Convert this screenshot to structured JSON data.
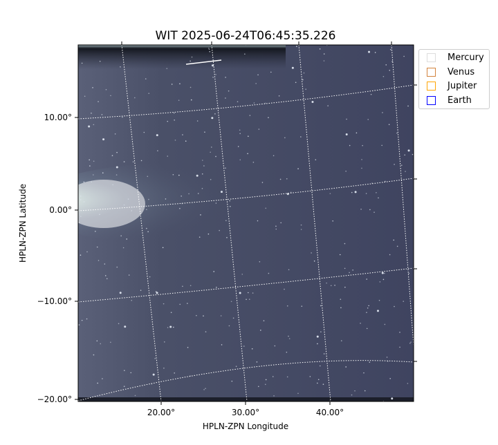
{
  "chart_data": {
    "type": "heatmap",
    "title": "WIT 2025-06-24T06:45:35.226",
    "xlabel": "HPLN-ZPN Longitude",
    "ylabel": "HPLN-ZPN Latitude",
    "x_ticks": [
      "20.00°",
      "30.00°",
      "40.00°"
    ],
    "y_ticks": [
      "10.00°",
      "0.00°",
      "−10.00°",
      "−20.00°"
    ],
    "grid": true,
    "grid_style": "dotted white coordinate grid",
    "colormap": "bone",
    "legend_placement": "upper-right outside",
    "legend": [
      {
        "label": "Mercury",
        "color": "#dddddd"
      },
      {
        "label": "Venus",
        "color": "#d2823c"
      },
      {
        "label": "Jupiter",
        "color": "#ffa500"
      },
      {
        "label": "Earth",
        "color": "#0000ff"
      }
    ]
  }
}
